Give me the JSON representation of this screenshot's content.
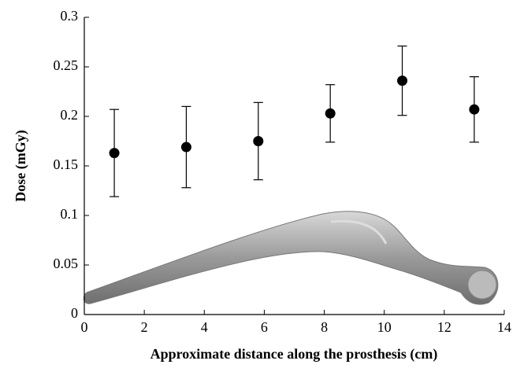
{
  "chart_data": {
    "type": "scatter",
    "x_label": "Approximate distance along the prosthesis (cm)",
    "y_label": "Dose (mGy)",
    "x": [
      1,
      3.4,
      5.8,
      8.2,
      10.6,
      13
    ],
    "values": [
      0.163,
      0.169,
      0.175,
      0.203,
      0.236,
      0.207
    ],
    "errors": [
      0.044,
      0.041,
      0.039,
      0.029,
      0.035,
      0.033
    ],
    "color": "#000000",
    "xlim": [
      0,
      14
    ],
    "xticks": [
      0,
      2,
      4,
      6,
      8,
      10,
      12,
      14
    ],
    "ylim": [
      0,
      0.3
    ],
    "yticks": [
      0,
      0.05,
      0.1,
      0.15,
      0.2,
      0.25,
      0.3
    ]
  }
}
